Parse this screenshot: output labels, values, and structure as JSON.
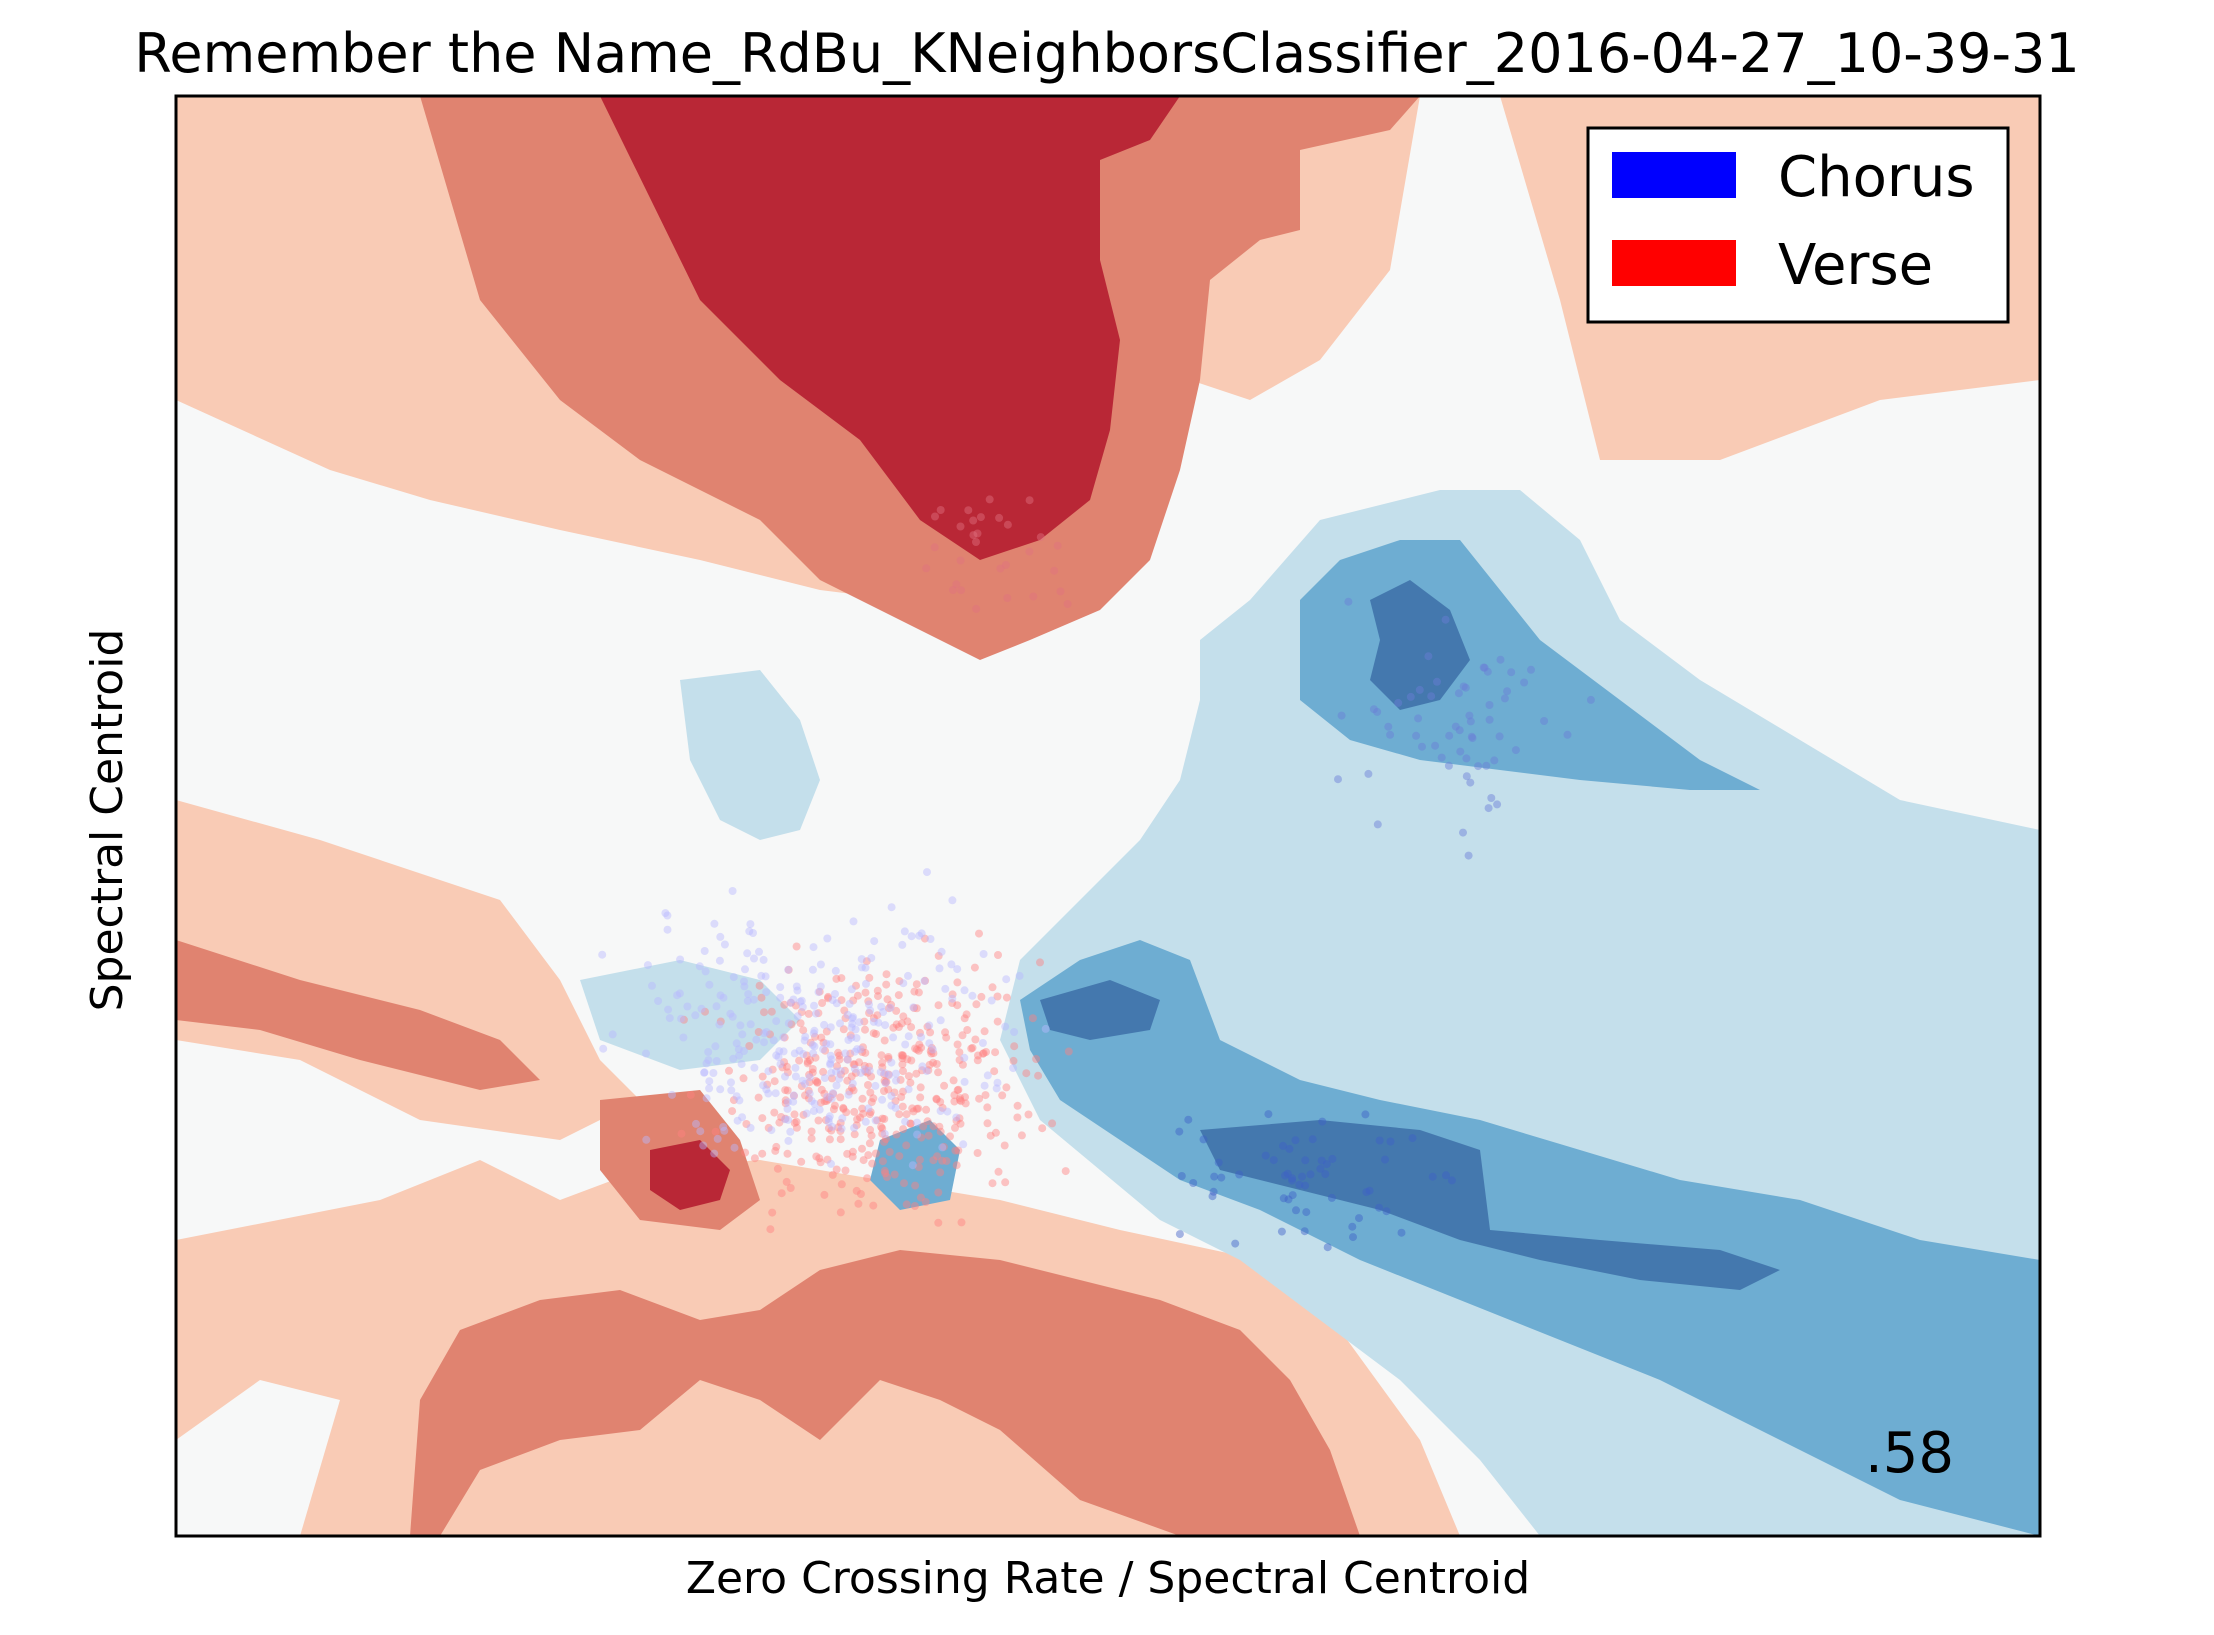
{
  "chart_data": {
    "type": "scatter",
    "title": "Remember the Name_RdBu_KNeighborsClassifier_2016-04-27_10-39-31",
    "xlabel": "Zero Crossing Rate / Spectral Centroid",
    "ylabel": "Spectral Centroid",
    "score": ".58",
    "background": "decision-boundary contour (RdBu colormap)",
    "axis_ticks": "none",
    "grid": false,
    "legend": {
      "placement": "top-right",
      "entries": [
        {
          "label": "Chorus",
          "color": "#0000ff"
        },
        {
          "label": "Verse",
          "color": "#ff0000"
        }
      ]
    },
    "colormap_levels": [
      "#b2182b",
      "#e08370",
      "#f9cbb5",
      "#f7f8f8",
      "#c4dfeb",
      "#6eadd2",
      "#4478ae"
    ]
  }
}
